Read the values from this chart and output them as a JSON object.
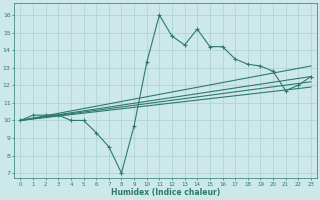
{
  "xlabel": "Humidex (Indice chaleur)",
  "xlim": [
    -0.5,
    23.5
  ],
  "ylim": [
    6.7,
    16.7
  ],
  "xticks": [
    0,
    1,
    2,
    3,
    4,
    5,
    6,
    7,
    8,
    9,
    10,
    11,
    12,
    13,
    14,
    15,
    16,
    17,
    18,
    19,
    20,
    21,
    22,
    23
  ],
  "yticks": [
    7,
    8,
    9,
    10,
    11,
    12,
    13,
    14,
    15,
    16
  ],
  "bg_color": "#cce8e8",
  "line_color": "#2d7a6a",
  "grid_color": "#b0d4d4",
  "line1_x": [
    0,
    1,
    2,
    3,
    4,
    5,
    6,
    7,
    8,
    9,
    10,
    11,
    12,
    13,
    14,
    15,
    16,
    17,
    18,
    19,
    20,
    21,
    22,
    23
  ],
  "line1_y": [
    10,
    10.3,
    10.3,
    10.3,
    10.0,
    10.0,
    9.3,
    8.5,
    7.0,
    9.7,
    13.3,
    16.0,
    14.8,
    14.3,
    15.2,
    14.2,
    14.2,
    13.5,
    13.2,
    13.1,
    12.8,
    11.7,
    12.0,
    12.5
  ],
  "smooth_lines": [
    {
      "x": [
        0,
        23
      ],
      "y": [
        10.0,
        12.5
      ]
    },
    {
      "x": [
        0,
        23
      ],
      "y": [
        10.0,
        12.2
      ]
    },
    {
      "x": [
        0,
        23
      ],
      "y": [
        10.0,
        11.9
      ]
    },
    {
      "x": [
        0,
        23
      ],
      "y": [
        10.0,
        13.1
      ]
    }
  ]
}
